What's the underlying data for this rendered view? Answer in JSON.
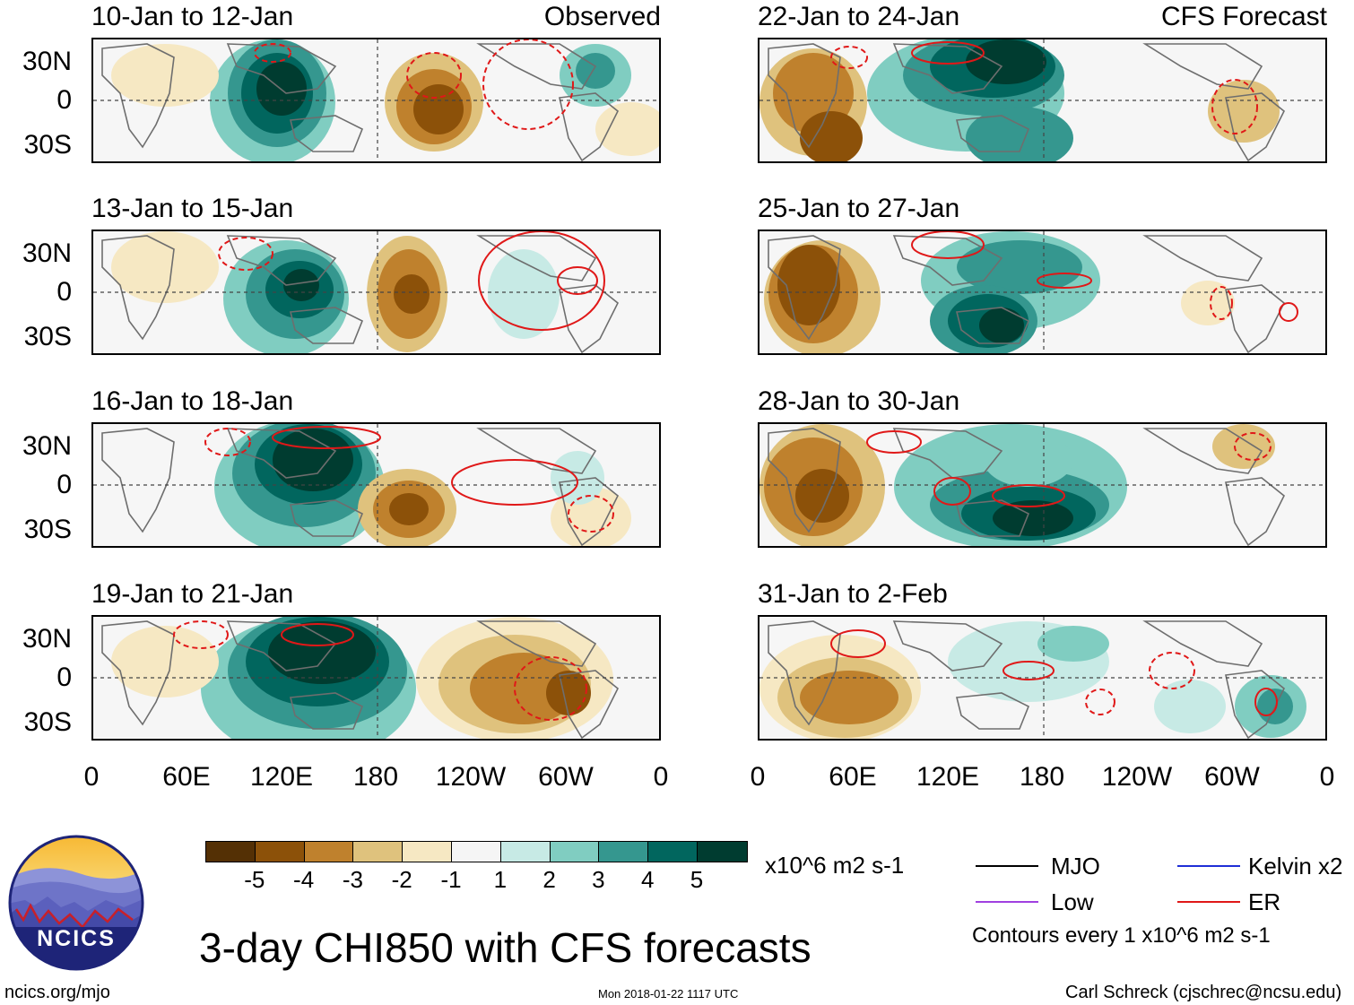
{
  "panels": [
    {
      "label": "10-Jan to 12-Jan",
      "tag": "Observed",
      "type": "Observed"
    },
    {
      "label": "13-Jan to 15-Jan",
      "tag": "",
      "type": "Observed"
    },
    {
      "label": "16-Jan to 18-Jan",
      "tag": "",
      "type": "Observed"
    },
    {
      "label": "19-Jan to 21-Jan",
      "tag": "",
      "type": "Observed"
    },
    {
      "label": "22-Jan to 24-Jan",
      "tag": "CFS Forecast",
      "type": "Forecast"
    },
    {
      "label": "25-Jan to 27-Jan",
      "tag": "",
      "type": "Forecast"
    },
    {
      "label": "28-Jan to 30-Jan",
      "tag": "",
      "type": "Forecast"
    },
    {
      "label": "31-Jan to 2-Feb",
      "tag": "",
      "type": "Forecast"
    }
  ],
  "axes": {
    "y_ticks": [
      "30N",
      "0",
      "30S"
    ],
    "x_ticks": [
      "0",
      "60E",
      "120E",
      "180",
      "120W",
      "60W",
      "0"
    ]
  },
  "colorbar": {
    "colors": [
      "#543005",
      "#8c5109",
      "#bf812d",
      "#dfc27d",
      "#f6e8c3",
      "#f5f5f5",
      "#c7eae5",
      "#80cdc1",
      "#35978f",
      "#01665e",
      "#003c30"
    ],
    "ticks": [
      "-5",
      "-4",
      "-3",
      "-2",
      "-1",
      "1",
      "2",
      "3",
      "4",
      "5"
    ],
    "units": "x10^6 m2 s-1"
  },
  "legend": {
    "items": [
      {
        "label": "MJO",
        "color": "#000000"
      },
      {
        "label": "Kelvin x2",
        "color": "#1f2fd6"
      },
      {
        "label": "Low",
        "color": "#a040e0"
      },
      {
        "label": "ER",
        "color": "#e01818"
      }
    ],
    "note": "Contours every 1 x10^6 m2 s-1"
  },
  "logo": {
    "text": "NCICS"
  },
  "title": "3-day CHI850 with CFS forecasts",
  "footer": {
    "left": "ncics.org/mjo",
    "center": "Mon 2018-01-22 1117 UTC",
    "right": "Carl Schreck (cjschrec@ncsu.edu)"
  }
}
